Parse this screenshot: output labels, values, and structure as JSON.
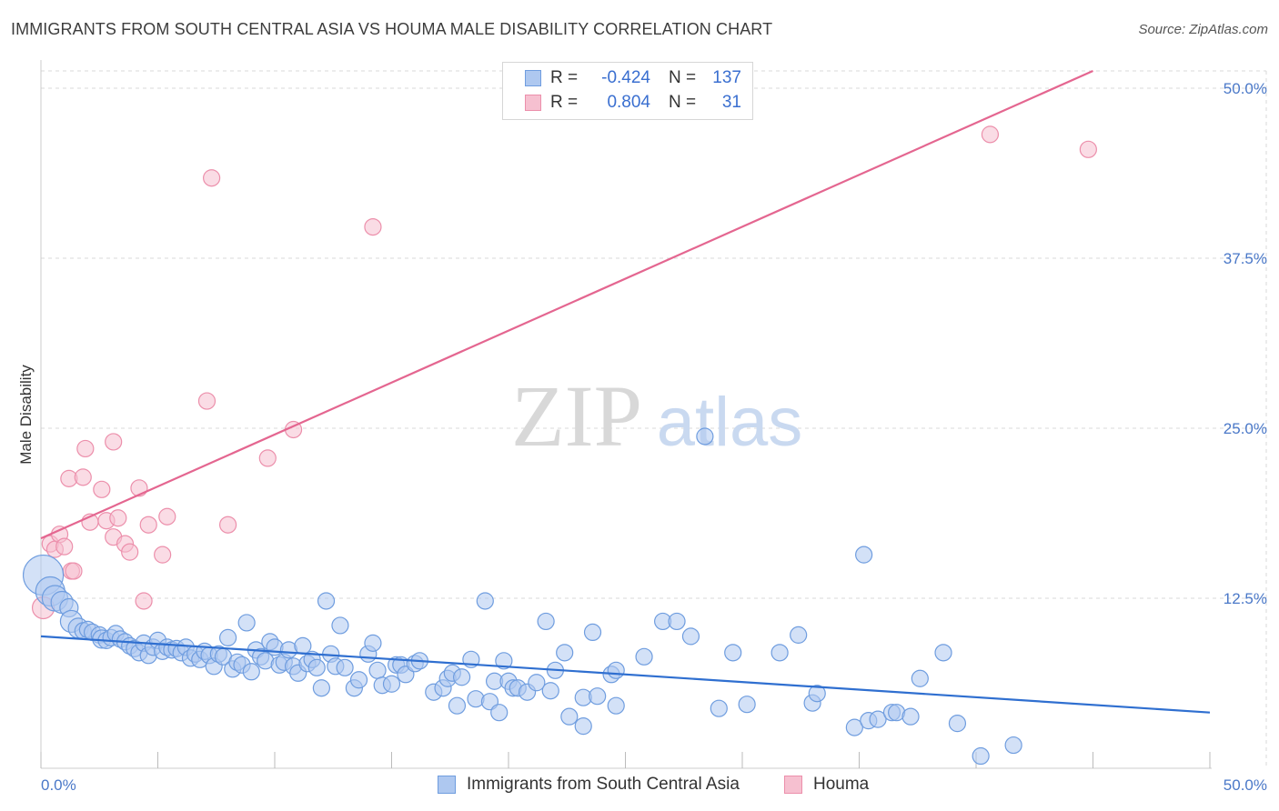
{
  "title": "IMMIGRANTS FROM SOUTH CENTRAL ASIA VS HOUMA MALE DISABILITY CORRELATION CHART",
  "source": "Source: ZipAtlas.com",
  "watermark": {
    "zip": "ZIP",
    "atlas": "atlas"
  },
  "colors": {
    "blue_fill": "#aec8f0",
    "blue_stroke": "#6f9ddf",
    "blue_line": "#2f6fd0",
    "pink_fill": "#f6c0d0",
    "pink_stroke": "#ec8fab",
    "pink_line": "#e46690",
    "grid": "#d9d9d9",
    "accent_text": "#3a6fd0"
  },
  "legend": {
    "rows": [
      {
        "r_label": "R =",
        "r_value": "-0.424",
        "n_label": "N =",
        "n_value": "137"
      },
      {
        "r_label": "R =",
        "r_value": "0.804",
        "n_label": "N =",
        "n_value": "31"
      }
    ]
  },
  "chart_data": {
    "type": "scatter",
    "xlabel": "",
    "ylabel": "Male Disability",
    "xlim": [
      0,
      50
    ],
    "ylim": [
      0,
      50
    ],
    "x_tick_labels": [
      "0.0%",
      "50.0%"
    ],
    "y_tick_labels": [
      "12.5%",
      "25.0%",
      "37.5%",
      "50.0%"
    ],
    "y_ticks": [
      12.5,
      25.0,
      37.5,
      50.0
    ],
    "grid": true,
    "legend_position": "top-center",
    "series": [
      {
        "name": "Immigrants from South Central Asia",
        "color": "#aec8f0",
        "trend": {
          "x0": 0,
          "y0": 9.7,
          "x1": 50,
          "y1": 4.1
        },
        "points": [
          [
            0.1,
            14.2,
            22
          ],
          [
            0.4,
            13.0,
            16
          ],
          [
            0.6,
            12.5,
            14
          ],
          [
            0.9,
            12.2,
            12
          ],
          [
            1.2,
            11.8,
            10
          ],
          [
            1.3,
            10.8,
            12
          ],
          [
            1.6,
            10.3,
            11
          ],
          [
            1.8,
            10.1,
            9
          ],
          [
            2.0,
            10.2,
            9
          ],
          [
            2.2,
            10.0,
            9
          ],
          [
            2.5,
            9.8,
            9
          ],
          [
            2.6,
            9.5,
            10
          ],
          [
            2.8,
            9.4,
            9
          ],
          [
            3.0,
            9.6,
            9
          ],
          [
            3.2,
            9.9,
            9
          ],
          [
            3.4,
            9.5,
            9
          ],
          [
            3.6,
            9.3,
            9
          ],
          [
            3.8,
            9.0,
            9
          ],
          [
            4.0,
            8.8,
            9
          ],
          [
            4.2,
            8.5,
            9
          ],
          [
            4.4,
            9.2,
            9
          ],
          [
            4.6,
            8.3,
            9
          ],
          [
            4.8,
            8.9,
            9
          ],
          [
            5.0,
            9.4,
            9
          ],
          [
            5.2,
            8.6,
            9
          ],
          [
            5.4,
            8.9,
            9
          ],
          [
            5.6,
            8.7,
            9
          ],
          [
            5.8,
            8.8,
            9
          ],
          [
            6.0,
            8.5,
            9
          ],
          [
            6.2,
            8.9,
            9
          ],
          [
            6.4,
            8.1,
            9
          ],
          [
            6.6,
            8.4,
            9
          ],
          [
            6.8,
            8.0,
            9
          ],
          [
            7.0,
            8.6,
            9
          ],
          [
            7.2,
            8.3,
            9
          ],
          [
            7.4,
            7.5,
            9
          ],
          [
            7.6,
            8.4,
            9
          ],
          [
            7.8,
            8.2,
            9
          ],
          [
            8.0,
            9.6,
            9
          ],
          [
            8.2,
            7.3,
            9
          ],
          [
            8.4,
            7.8,
            9
          ],
          [
            8.6,
            7.6,
            9
          ],
          [
            8.8,
            10.7,
            9
          ],
          [
            9.0,
            7.1,
            9
          ],
          [
            9.2,
            8.7,
            9
          ],
          [
            9.4,
            8.2,
            9
          ],
          [
            9.6,
            7.9,
            9
          ],
          [
            9.8,
            9.3,
            9
          ],
          [
            10.0,
            8.9,
            9
          ],
          [
            10.2,
            7.6,
            9
          ],
          [
            10.4,
            7.8,
            9
          ],
          [
            10.6,
            8.7,
            9
          ],
          [
            10.8,
            7.5,
            9
          ],
          [
            11.0,
            7.0,
            9
          ],
          [
            11.2,
            9.0,
            9
          ],
          [
            11.4,
            7.7,
            9
          ],
          [
            11.6,
            8.0,
            9
          ],
          [
            11.8,
            7.4,
            9
          ],
          [
            12.0,
            5.9,
            9
          ],
          [
            12.2,
            12.3,
            9
          ],
          [
            12.4,
            8.4,
            9
          ],
          [
            12.6,
            7.5,
            9
          ],
          [
            12.8,
            10.5,
            9
          ],
          [
            13.0,
            7.4,
            9
          ],
          [
            13.4,
            5.9,
            9
          ],
          [
            13.6,
            6.5,
            9
          ],
          [
            14.0,
            8.4,
            9
          ],
          [
            14.2,
            9.2,
            9
          ],
          [
            14.4,
            7.2,
            9
          ],
          [
            14.6,
            6.1,
            9
          ],
          [
            15.0,
            6.2,
            9
          ],
          [
            15.2,
            7.6,
            9
          ],
          [
            15.4,
            7.6,
            9
          ],
          [
            15.6,
            6.9,
            9
          ],
          [
            16.0,
            7.7,
            9
          ],
          [
            16.2,
            7.9,
            9
          ],
          [
            16.8,
            5.6,
            9
          ],
          [
            17.2,
            5.9,
            9
          ],
          [
            17.4,
            6.6,
            9
          ],
          [
            17.6,
            7.0,
            9
          ],
          [
            17.8,
            4.6,
            9
          ],
          [
            18.0,
            6.7,
            9
          ],
          [
            18.4,
            8.0,
            9
          ],
          [
            18.6,
            5.1,
            9
          ],
          [
            19.0,
            12.3,
            9
          ],
          [
            19.2,
            4.9,
            9
          ],
          [
            19.4,
            6.4,
            9
          ],
          [
            19.6,
            4.1,
            9
          ],
          [
            19.8,
            7.9,
            9
          ],
          [
            20.0,
            6.4,
            9
          ],
          [
            20.2,
            5.9,
            9
          ],
          [
            20.4,
            5.9,
            9
          ],
          [
            20.8,
            5.6,
            9
          ],
          [
            21.2,
            6.3,
            9
          ],
          [
            21.6,
            10.8,
            9
          ],
          [
            21.8,
            5.7,
            9
          ],
          [
            22.0,
            7.2,
            9
          ],
          [
            22.4,
            8.5,
            9
          ],
          [
            22.6,
            3.8,
            9
          ],
          [
            23.2,
            5.2,
            9
          ],
          [
            23.2,
            3.1,
            9
          ],
          [
            23.6,
            10.0,
            9
          ],
          [
            23.8,
            5.3,
            9
          ],
          [
            24.4,
            6.9,
            9
          ],
          [
            24.6,
            7.2,
            9
          ],
          [
            24.6,
            4.6,
            9
          ],
          [
            25.8,
            8.2,
            9
          ],
          [
            26.6,
            10.8,
            9
          ],
          [
            27.2,
            10.8,
            9
          ],
          [
            27.8,
            9.7,
            9
          ],
          [
            28.4,
            24.4,
            9
          ],
          [
            29.0,
            4.4,
            9
          ],
          [
            29.6,
            8.5,
            9
          ],
          [
            30.2,
            4.7,
            9
          ],
          [
            31.6,
            8.5,
            9
          ],
          [
            32.4,
            9.8,
            9
          ],
          [
            33.0,
            4.8,
            9
          ],
          [
            33.2,
            5.5,
            9
          ],
          [
            34.8,
            3.0,
            9
          ],
          [
            35.2,
            15.7,
            9
          ],
          [
            35.4,
            3.5,
            9
          ],
          [
            35.8,
            3.6,
            9
          ],
          [
            36.4,
            4.1,
            9
          ],
          [
            36.6,
            4.1,
            9
          ],
          [
            37.2,
            3.8,
            9
          ],
          [
            37.6,
            6.6,
            9
          ],
          [
            38.6,
            8.5,
            9
          ],
          [
            39.2,
            3.3,
            9
          ],
          [
            40.2,
            0.9,
            9
          ],
          [
            41.6,
            1.7,
            9
          ]
        ]
      },
      {
        "name": "Houma",
        "color": "#f6c0d0",
        "trend": {
          "x0": 0,
          "y0": 16.9,
          "x1": 45,
          "y1": 50.0
        },
        "points": [
          [
            0.1,
            11.8,
            12
          ],
          [
            0.4,
            16.5,
            9
          ],
          [
            0.6,
            16.1,
            9
          ],
          [
            0.8,
            17.2,
            9
          ],
          [
            1.0,
            16.3,
            9
          ],
          [
            1.2,
            21.3,
            9
          ],
          [
            1.3,
            14.5,
            9
          ],
          [
            1.4,
            14.5,
            9
          ],
          [
            1.8,
            21.4,
            9
          ],
          [
            1.9,
            23.5,
            9
          ],
          [
            2.1,
            18.1,
            9
          ],
          [
            2.6,
            20.5,
            9
          ],
          [
            2.8,
            18.2,
            9
          ],
          [
            3.1,
            17.0,
            9
          ],
          [
            3.1,
            24.0,
            9
          ],
          [
            3.3,
            18.4,
            9
          ],
          [
            3.6,
            16.5,
            9
          ],
          [
            3.8,
            15.9,
            9
          ],
          [
            4.2,
            20.6,
            9
          ],
          [
            4.4,
            12.3,
            9
          ],
          [
            4.6,
            17.9,
            9
          ],
          [
            5.2,
            15.7,
            9
          ],
          [
            5.4,
            18.5,
            9
          ],
          [
            7.1,
            27.0,
            9
          ],
          [
            7.3,
            43.4,
            9
          ],
          [
            8.0,
            17.9,
            9
          ],
          [
            9.7,
            22.8,
            9
          ],
          [
            10.8,
            24.9,
            9
          ],
          [
            14.2,
            39.8,
            9
          ],
          [
            40.6,
            46.6,
            9
          ],
          [
            44.8,
            45.5,
            9
          ]
        ]
      }
    ]
  },
  "bottom_legend": [
    {
      "label": "Immigrants from South Central Asia"
    },
    {
      "label": "Houma"
    }
  ]
}
